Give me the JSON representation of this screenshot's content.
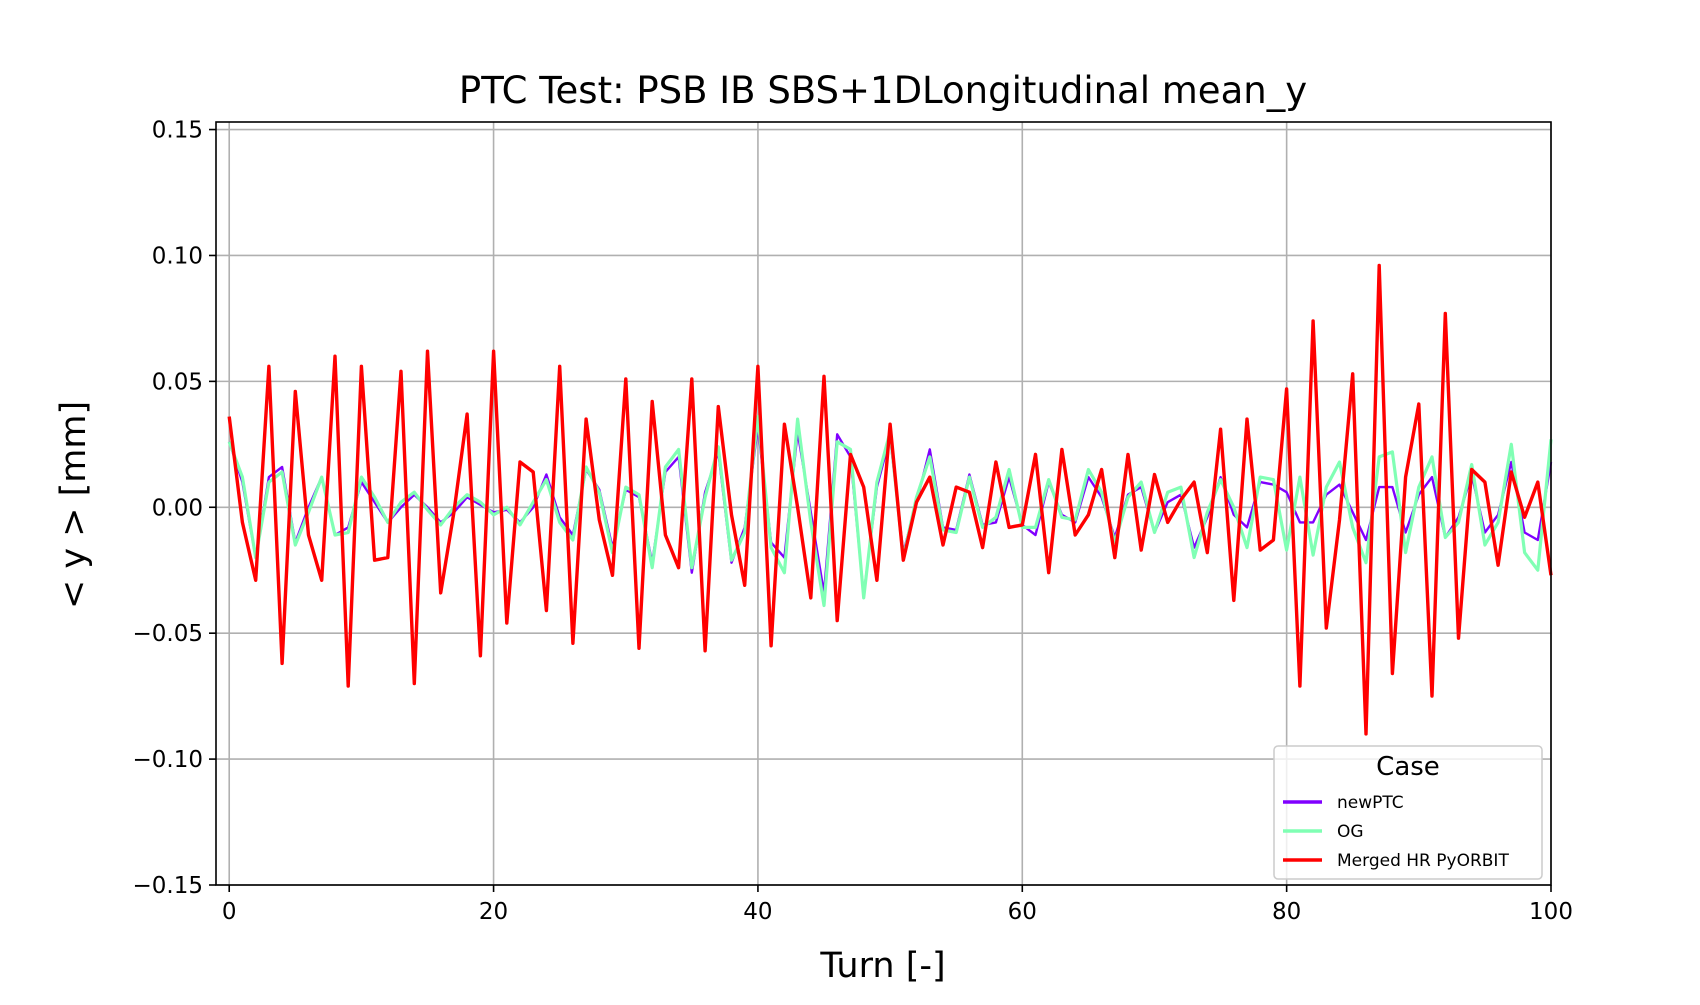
{
  "chart_data": {
    "type": "line",
    "title": "PTC Test: PSB IB SBS+1DLongitudinal mean_y",
    "xlabel": "Turn [-]",
    "ylabel": "< y > [mm]",
    "xlim": [
      -1,
      100
    ],
    "ylim": [
      -0.15,
      0.153
    ],
    "grid": true,
    "xticks": [
      0,
      20,
      40,
      60,
      80,
      100
    ],
    "xtick_labels": [
      "0",
      "20",
      "40",
      "60",
      "80",
      "100"
    ],
    "yticks": [
      -0.15,
      -0.1,
      -0.05,
      0.0,
      0.05,
      0.1,
      0.15
    ],
    "ytick_labels": [
      "−0.15",
      "−0.10",
      "−0.05",
      "0.00",
      "0.05",
      "0.10",
      "0.15"
    ],
    "legend": {
      "title": "Case",
      "position": "lower right"
    },
    "series": [
      {
        "name": "newPTC",
        "color": "#8000ff",
        "values": [
          0.026,
          0.01,
          -0.02,
          0.012,
          0.016,
          -0.014,
          0.0,
          0.012,
          -0.011,
          -0.008,
          0.01,
          0.002,
          -0.006,
          0.0,
          0.005,
          0.0,
          -0.006,
          -0.002,
          0.004,
          0.001,
          -0.002,
          -0.001,
          -0.006,
          0.0,
          0.013,
          -0.004,
          -0.011,
          0.015,
          0.007,
          -0.016,
          0.007,
          0.004,
          -0.022,
          0.014,
          0.02,
          -0.026,
          0.006,
          0.022,
          -0.022,
          -0.008,
          0.032,
          -0.014,
          -0.02,
          0.03,
          -0.002,
          -0.034,
          0.029,
          0.02,
          -0.035,
          0.008,
          0.028,
          -0.018,
          0.002,
          0.023,
          -0.008,
          -0.009,
          0.013,
          -0.007,
          -0.006,
          0.012,
          -0.007,
          -0.011,
          0.01,
          -0.003,
          -0.006,
          0.012,
          0.004,
          -0.012,
          0.005,
          0.008,
          -0.01,
          0.002,
          0.005,
          -0.016,
          -0.004,
          0.012,
          -0.003,
          -0.008,
          0.01,
          0.009,
          0.006,
          -0.006,
          -0.006,
          0.005,
          0.009,
          -0.002,
          -0.013,
          0.008,
          0.008,
          -0.01,
          0.005,
          0.012,
          -0.012,
          -0.004,
          0.013,
          -0.01,
          -0.003,
          0.018,
          -0.01,
          -0.013,
          0.018
        ]
      },
      {
        "name": "OG",
        "color": "#80ffb4",
        "values": [
          0.026,
          0.012,
          -0.02,
          0.01,
          0.014,
          -0.015,
          -0.002,
          0.012,
          -0.011,
          -0.01,
          0.012,
          0.004,
          -0.006,
          0.002,
          0.006,
          -0.001,
          -0.007,
          0.0,
          0.005,
          0.002,
          -0.003,
          0.0,
          -0.007,
          0.002,
          0.011,
          -0.006,
          -0.013,
          0.016,
          0.006,
          -0.018,
          0.008,
          0.005,
          -0.024,
          0.016,
          0.023,
          -0.024,
          0.004,
          0.024,
          -0.021,
          -0.01,
          0.036,
          -0.016,
          -0.026,
          0.035,
          -0.006,
          -0.039,
          0.026,
          0.023,
          -0.036,
          0.01,
          0.03,
          -0.02,
          0.004,
          0.02,
          -0.009,
          -0.01,
          0.012,
          -0.008,
          -0.004,
          0.015,
          -0.008,
          -0.008,
          0.011,
          -0.004,
          -0.005,
          0.015,
          0.006,
          -0.014,
          0.004,
          0.01,
          -0.01,
          0.006,
          0.008,
          -0.02,
          -0.002,
          0.011,
          0.0,
          -0.016,
          0.012,
          0.011,
          -0.017,
          0.012,
          -0.019,
          0.008,
          0.018,
          -0.008,
          -0.022,
          0.02,
          0.022,
          -0.018,
          0.008,
          0.02,
          -0.012,
          -0.006,
          0.017,
          -0.015,
          -0.006,
          0.025,
          -0.018,
          -0.025,
          0.027
        ]
      },
      {
        "name": "Merged HR PyORBIT",
        "color": "#ff0000",
        "values": [
          0.036,
          -0.006,
          -0.029,
          0.056,
          -0.062,
          0.046,
          -0.011,
          -0.029,
          0.06,
          -0.071,
          0.056,
          -0.021,
          -0.02,
          0.054,
          -0.07,
          0.062,
          -0.034,
          -0.002,
          0.037,
          -0.059,
          0.062,
          -0.046,
          0.018,
          0.014,
          -0.041,
          0.056,
          -0.054,
          0.035,
          -0.005,
          -0.027,
          0.051,
          -0.056,
          0.042,
          -0.011,
          -0.024,
          0.051,
          -0.057,
          0.04,
          -0.003,
          -0.031,
          0.056,
          -0.055,
          0.033,
          0.0,
          -0.036,
          0.052,
          -0.045,
          0.021,
          0.008,
          -0.029,
          0.033,
          -0.021,
          0.002,
          0.012,
          -0.015,
          0.008,
          0.006,
          -0.016,
          0.018,
          -0.008,
          -0.007,
          0.021,
          -0.026,
          0.023,
          -0.011,
          -0.003,
          0.015,
          -0.02,
          0.021,
          -0.017,
          0.013,
          -0.006,
          0.003,
          0.01,
          -0.018,
          0.031,
          -0.037,
          0.035,
          -0.017,
          -0.013,
          0.047,
          -0.071,
          0.074,
          -0.048,
          -0.005,
          0.053,
          -0.09,
          0.096,
          -0.066,
          0.012,
          0.041,
          -0.075,
          0.077,
          -0.052,
          0.015,
          0.01,
          -0.023,
          0.014,
          -0.004,
          0.01,
          -0.027
        ]
      }
    ]
  }
}
